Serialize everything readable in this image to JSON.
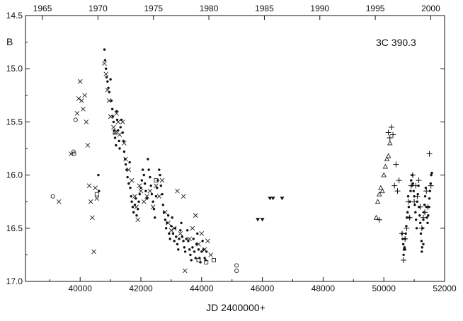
{
  "chart_data": {
    "type": "scatter",
    "object_label": "3C 390.3",
    "band_label": "B",
    "xlabel": "JD 2400000+",
    "x_top_label": "",
    "xlim": [
      38200,
      52000
    ],
    "ylim": [
      17.0,
      14.5
    ],
    "y_inverted": true,
    "grid": false,
    "x_ticks": [
      40000,
      42000,
      44000,
      46000,
      48000,
      50000,
      52000
    ],
    "y_ticks": [
      15.0,
      15.5,
      16.0,
      16.5,
      17.0
    ],
    "y_tick_labels": [
      "14.5",
      "15.0",
      "15.5",
      "16.0",
      "16.5",
      "17.0"
    ],
    "y_tick_values": [
      14.5,
      15.0,
      15.5,
      16.0,
      16.5,
      17.0
    ],
    "top_ticks": [
      {
        "label": "1965",
        "jd": 38761
      },
      {
        "label": "1970",
        "jd": 40587
      },
      {
        "label": "1975",
        "jd": 42413
      },
      {
        "label": "1980",
        "jd": 44239
      },
      {
        "label": "1985",
        "jd": 46066
      },
      {
        "label": "1990",
        "jd": 47892
      },
      {
        "label": "1995",
        "jd": 49718
      },
      {
        "label": "2000",
        "jd": 51544
      }
    ],
    "series": [
      {
        "marker": "cross",
        "points": [
          [
            39300,
            16.25
          ],
          [
            39700,
            15.8
          ],
          [
            39900,
            15.42
          ],
          [
            39950,
            15.28
          ],
          [
            40000,
            15.12
          ],
          [
            40050,
            15.3
          ],
          [
            40100,
            15.38
          ],
          [
            40150,
            15.25
          ],
          [
            40200,
            15.5
          ],
          [
            40250,
            15.72
          ],
          [
            40300,
            16.1
          ],
          [
            40350,
            16.25
          ],
          [
            40400,
            16.4
          ],
          [
            40450,
            16.72
          ],
          [
            40500,
            16.12
          ],
          [
            40550,
            16.22
          ],
          [
            40800,
            14.95
          ],
          [
            40850,
            15.05
          ],
          [
            40900,
            15.2
          ],
          [
            40950,
            15.3
          ],
          [
            41000,
            15.45
          ],
          [
            41100,
            15.55
          ],
          [
            41150,
            15.6
          ],
          [
            41200,
            15.42
          ],
          [
            41250,
            15.5
          ],
          [
            41300,
            15.62
          ],
          [
            41400,
            15.5
          ],
          [
            41450,
            15.7
          ],
          [
            41500,
            15.85
          ],
          [
            41600,
            15.95
          ],
          [
            41700,
            16.05
          ],
          [
            41800,
            16.2
          ],
          [
            41850,
            16.3
          ],
          [
            41900,
            16.42
          ],
          [
            41950,
            16.1
          ],
          [
            42000,
            16.15
          ],
          [
            42100,
            16.25
          ],
          [
            42200,
            16.2
          ],
          [
            42300,
            16.15
          ],
          [
            42400,
            16.3
          ],
          [
            42500,
            16.1
          ],
          [
            42600,
            16.2
          ],
          [
            42700,
            16.05
          ],
          [
            42800,
            16.35
          ],
          [
            42900,
            16.45
          ],
          [
            43000,
            16.52
          ],
          [
            43100,
            16.5
          ],
          [
            43200,
            16.15
          ],
          [
            43300,
            16.55
          ],
          [
            43400,
            16.2
          ],
          [
            43450,
            16.9
          ],
          [
            43600,
            16.6
          ],
          [
            43700,
            16.5
          ],
          [
            43800,
            16.38
          ],
          [
            43900,
            16.65
          ],
          [
            44000,
            16.55
          ],
          [
            44100,
            16.7
          ],
          [
            44200,
            16.62
          ],
          [
            44300,
            16.75
          ]
        ]
      },
      {
        "marker": "dot",
        "points": [
          [
            40600,
            16.0
          ],
          [
            40620,
            16.15
          ],
          [
            40800,
            14.82
          ],
          [
            40820,
            14.92
          ],
          [
            40850,
            15.0
          ],
          [
            40870,
            15.08
          ],
          [
            40900,
            15.12
          ],
          [
            40930,
            15.18
          ],
          [
            40960,
            15.22
          ],
          [
            41000,
            15.1
          ],
          [
            41030,
            15.3
          ],
          [
            41060,
            15.38
          ],
          [
            41080,
            15.45
          ],
          [
            41100,
            15.5
          ],
          [
            41120,
            15.58
          ],
          [
            41150,
            15.65
          ],
          [
            41180,
            15.72
          ],
          [
            41200,
            15.4
          ],
          [
            41220,
            15.48
          ],
          [
            41250,
            15.58
          ],
          [
            41280,
            15.68
          ],
          [
            41300,
            15.75
          ],
          [
            41330,
            15.55
          ],
          [
            41360,
            15.48
          ],
          [
            41400,
            15.6
          ],
          [
            41430,
            15.68
          ],
          [
            41450,
            15.78
          ],
          [
            41480,
            15.85
          ],
          [
            41500,
            15.9
          ],
          [
            41530,
            15.95
          ],
          [
            41560,
            16.02
          ],
          [
            41600,
            16.08
          ],
          [
            41630,
            15.88
          ],
          [
            41650,
            16.12
          ],
          [
            41680,
            16.2
          ],
          [
            41700,
            16.25
          ],
          [
            41730,
            16.3
          ],
          [
            41760,
            16.35
          ],
          [
            41800,
            16.28
          ],
          [
            41830,
            16.22
          ],
          [
            41860,
            16.38
          ],
          [
            41900,
            16.32
          ],
          [
            41930,
            16.25
          ],
          [
            41960,
            16.18
          ],
          [
            42000,
            16.12
          ],
          [
            42030,
            16.05
          ],
          [
            42060,
            15.95
          ],
          [
            42100,
            16.0
          ],
          [
            42130,
            16.08
          ],
          [
            42160,
            16.15
          ],
          [
            42200,
            16.22
          ],
          [
            42230,
            15.85
          ],
          [
            42260,
            15.95
          ],
          [
            42300,
            16.02
          ],
          [
            42330,
            16.1
          ],
          [
            42360,
            16.18
          ],
          [
            42400,
            16.25
          ],
          [
            42430,
            16.32
          ],
          [
            42460,
            16.4
          ],
          [
            42500,
            16.2
          ],
          [
            42530,
            16.12
          ],
          [
            42560,
            16.05
          ],
          [
            42600,
            15.95
          ],
          [
            42630,
            16.0
          ],
          [
            42660,
            16.1
          ],
          [
            42700,
            16.18
          ],
          [
            42730,
            16.28
          ],
          [
            42760,
            16.35
          ],
          [
            42800,
            16.42
          ],
          [
            42830,
            16.5
          ],
          [
            42860,
            16.45
          ],
          [
            42900,
            16.38
          ],
          [
            42930,
            16.55
          ],
          [
            42960,
            16.6
          ],
          [
            43000,
            16.48
          ],
          [
            43030,
            16.4
          ],
          [
            43060,
            16.55
          ],
          [
            43100,
            16.62
          ],
          [
            43130,
            16.5
          ],
          [
            43160,
            16.58
          ],
          [
            43200,
            16.65
          ],
          [
            43230,
            16.7
          ],
          [
            43260,
            16.6
          ],
          [
            43300,
            16.52
          ],
          [
            43330,
            16.45
          ],
          [
            43360,
            16.58
          ],
          [
            43400,
            16.62
          ],
          [
            43430,
            16.68
          ],
          [
            43460,
            16.72
          ],
          [
            43500,
            16.6
          ],
          [
            43530,
            16.52
          ],
          [
            43560,
            16.62
          ],
          [
            43600,
            16.7
          ],
          [
            43630,
            16.75
          ],
          [
            43660,
            16.8
          ],
          [
            43700,
            16.68
          ],
          [
            43730,
            16.6
          ],
          [
            43760,
            16.72
          ],
          [
            43800,
            16.78
          ],
          [
            43830,
            16.65
          ],
          [
            43860,
            16.55
          ],
          [
            43900,
            16.7
          ],
          [
            43930,
            16.78
          ],
          [
            43960,
            16.82
          ],
          [
            44000,
            16.72
          ],
          [
            44030,
            16.62
          ],
          [
            44060,
            16.7
          ],
          [
            44100,
            16.78
          ],
          [
            44130,
            16.8
          ],
          [
            44160,
            16.72
          ],
          [
            50600,
            16.55
          ],
          [
            50620,
            16.6
          ],
          [
            50640,
            16.65
          ],
          [
            50660,
            16.7
          ],
          [
            50680,
            16.68
          ],
          [
            50700,
            16.6
          ],
          [
            50720,
            16.55
          ],
          [
            50740,
            16.48
          ],
          [
            50760,
            16.4
          ],
          [
            50780,
            16.35
          ],
          [
            50800,
            16.2
          ],
          [
            50820,
            16.3
          ],
          [
            50840,
            16.4
          ],
          [
            50860,
            16.25
          ],
          [
            50880,
            16.15
          ],
          [
            50900,
            16.05
          ],
          [
            50920,
            16.1
          ],
          [
            50940,
            16.0
          ],
          [
            50960,
            16.08
          ],
          [
            50980,
            16.15
          ],
          [
            51000,
            16.2
          ],
          [
            51020,
            16.28
          ],
          [
            51040,
            16.35
          ],
          [
            51060,
            16.42
          ],
          [
            51080,
            16.5
          ],
          [
            51100,
            16.25
          ],
          [
            51120,
            16.18
          ],
          [
            51140,
            16.1
          ],
          [
            51160,
            16.3
          ],
          [
            51180,
            16.38
          ],
          [
            51200,
            16.45
          ],
          [
            51220,
            16.55
          ],
          [
            51240,
            16.62
          ],
          [
            51260,
            16.68
          ],
          [
            51280,
            16.5
          ],
          [
            51300,
            16.42
          ],
          [
            51320,
            16.35
          ],
          [
            51340,
            16.28
          ],
          [
            51360,
            16.2
          ],
          [
            51380,
            16.12
          ],
          [
            51400,
            16.3
          ],
          [
            51420,
            16.4
          ],
          [
            51440,
            16.45
          ],
          [
            51460,
            16.38
          ],
          [
            51480,
            16.3
          ],
          [
            51500,
            16.22
          ],
          [
            51520,
            16.15
          ],
          [
            51540,
            16.08
          ],
          [
            51560,
            16.0
          ],
          [
            51580,
            15.98
          ],
          [
            50650,
            16.75
          ],
          [
            50700,
            16.7
          ],
          [
            51250,
            16.72
          ],
          [
            51300,
            16.65
          ]
        ]
      },
      {
        "marker": "open-circle",
        "points": [
          [
            39100,
            16.2
          ],
          [
            39850,
            15.48
          ],
          [
            39800,
            15.8
          ],
          [
            39780,
            15.78
          ],
          [
            45150,
            16.85
          ],
          [
            45150,
            16.9
          ]
        ]
      },
      {
        "marker": "open-square",
        "points": [
          [
            40550,
            16.18
          ],
          [
            41150,
            15.6
          ],
          [
            42500,
            16.05
          ],
          [
            43900,
            16.8
          ],
          [
            44150,
            16.82
          ],
          [
            44400,
            16.8
          ]
        ]
      },
      {
        "marker": "filled-triangle-down",
        "points": [
          [
            45850,
            16.42
          ],
          [
            46000,
            16.42
          ],
          [
            46250,
            16.22
          ],
          [
            46350,
            16.22
          ],
          [
            46650,
            16.22
          ]
        ]
      },
      {
        "marker": "open-triangle",
        "points": [
          [
            49750,
            16.4
          ],
          [
            49800,
            16.25
          ],
          [
            49850,
            16.18
          ],
          [
            49900,
            16.12
          ],
          [
            49950,
            16.15
          ],
          [
            50000,
            16.0
          ],
          [
            50050,
            15.92
          ],
          [
            50100,
            15.85
          ],
          [
            50150,
            15.82
          ],
          [
            50200,
            15.7
          ]
        ]
      },
      {
        "marker": "plus",
        "points": [
          [
            49850,
            16.42
          ],
          [
            50150,
            15.6
          ],
          [
            50200,
            15.65
          ],
          [
            50250,
            15.55
          ],
          [
            50300,
            15.62
          ],
          [
            50350,
            16.1
          ],
          [
            50400,
            15.9
          ],
          [
            50450,
            16.15
          ],
          [
            50500,
            16.05
          ],
          [
            50600,
            16.55
          ],
          [
            50650,
            16.8
          ],
          [
            50700,
            16.6
          ],
          [
            50750,
            16.5
          ],
          [
            50800,
            16.25
          ],
          [
            50850,
            16.4
          ],
          [
            50900,
            16.1
          ],
          [
            50950,
            16.0
          ],
          [
            51000,
            16.25
          ],
          [
            51050,
            16.1
          ],
          [
            51100,
            16.2
          ],
          [
            51150,
            16.05
          ],
          [
            51200,
            16.3
          ],
          [
            51250,
            16.5
          ],
          [
            51300,
            16.4
          ],
          [
            51350,
            16.35
          ],
          [
            51400,
            16.15
          ],
          [
            51450,
            16.3
          ],
          [
            51500,
            15.8
          ],
          [
            51550,
            16.1
          ]
        ]
      }
    ]
  }
}
